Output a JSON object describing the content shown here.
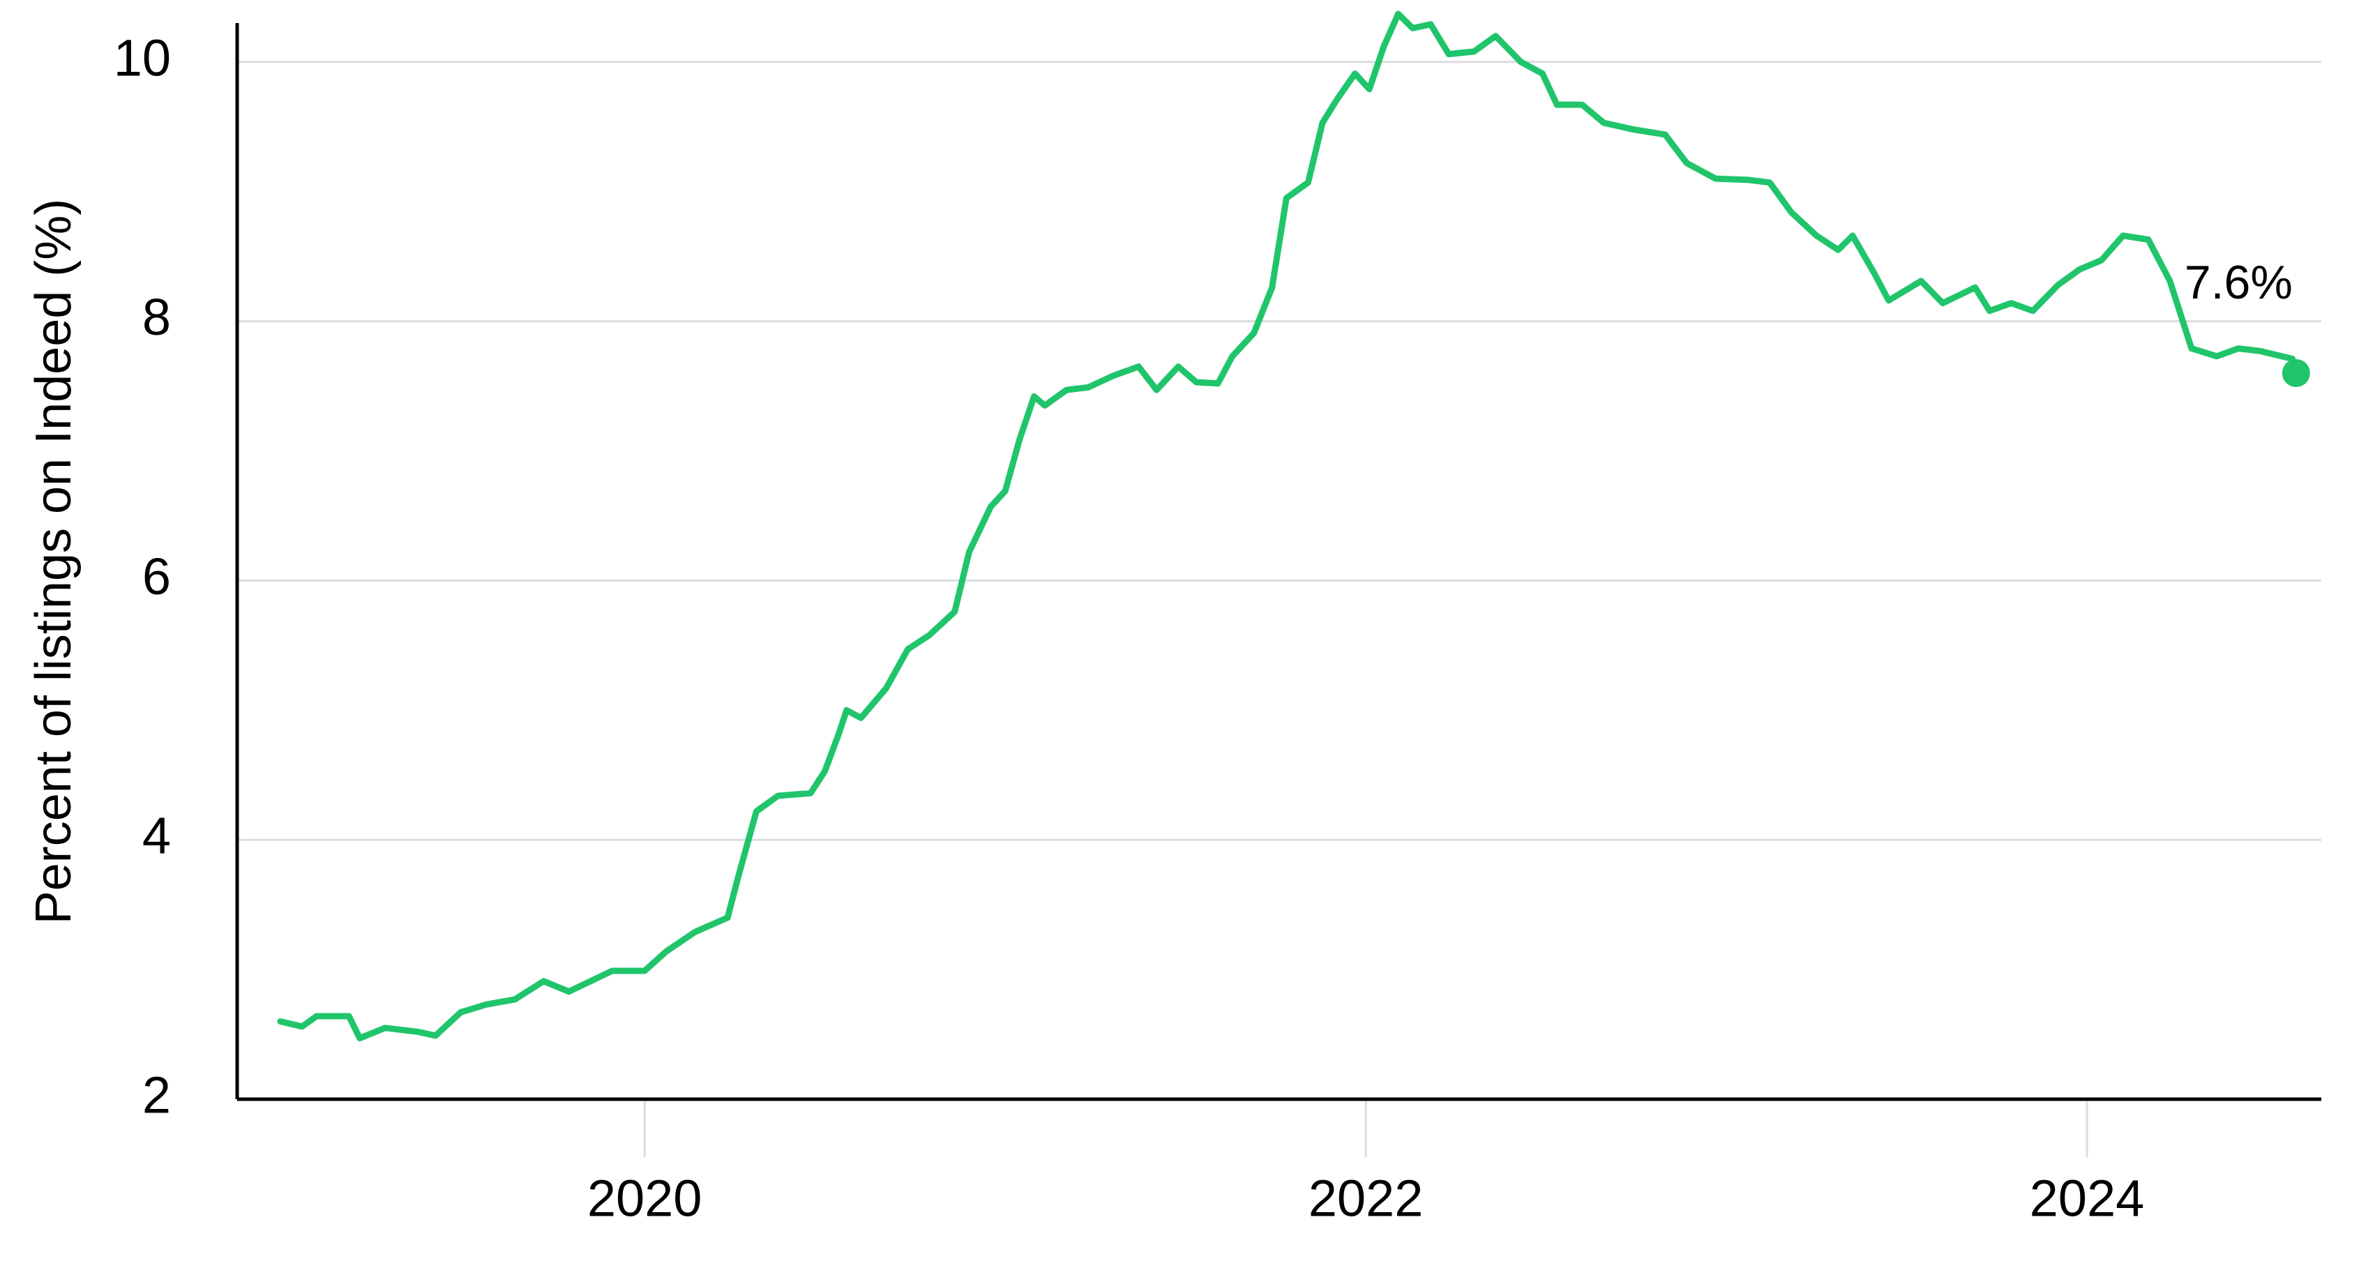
{
  "chart_data": {
    "type": "line",
    "y_label": "Percent of listings on Indeed (%)",
    "x": [
      2018.99,
      2019.05,
      2019.09,
      2019.18,
      2019.21,
      2019.28,
      2019.37,
      2019.42,
      2019.49,
      2019.56,
      2019.64,
      2019.72,
      2019.79,
      2019.85,
      2019.91,
      2020.0,
      2020.06,
      2020.14,
      2020.23,
      2020.26,
      2020.31,
      2020.37,
      2020.46,
      2020.5,
      2020.54,
      2020.56,
      2020.6,
      2020.67,
      2020.73,
      2020.79,
      2020.86,
      2020.9,
      2020.96,
      2021.0,
      2021.04,
      2021.08,
      2021.11,
      2021.17,
      2021.23,
      2021.3,
      2021.37,
      2021.42,
      2021.48,
      2021.53,
      2021.59,
      2021.63,
      2021.69,
      2021.74,
      2021.78,
      2021.84,
      2021.88,
      2021.92,
      2021.97,
      2022.01,
      2022.05,
      2022.09,
      2022.13,
      2022.18,
      2022.23,
      2022.3,
      2022.36,
      2022.43,
      2022.49,
      2022.53,
      2022.6,
      2022.66,
      2022.74,
      2022.83,
      2022.89,
      2022.97,
      2023.06,
      2023.12,
      2023.18,
      2023.25,
      2023.31,
      2023.35,
      2023.41,
      2023.45,
      2023.54,
      2023.6,
      2023.69,
      2023.73,
      2023.79,
      2023.85,
      2023.92,
      2023.98,
      2024.04,
      2024.1,
      2024.17,
      2024.23,
      2024.29,
      2024.36,
      2024.42,
      2024.48,
      2024.57
    ],
    "values": [
      2.6,
      2.56,
      2.64,
      2.64,
      2.47,
      2.55,
      2.52,
      2.49,
      2.67,
      2.73,
      2.77,
      2.91,
      2.83,
      2.91,
      2.99,
      2.99,
      3.14,
      3.29,
      3.4,
      3.72,
      4.22,
      4.34,
      4.36,
      4.53,
      4.83,
      5.0,
      4.94,
      5.17,
      5.47,
      5.58,
      5.76,
      6.22,
      6.57,
      6.69,
      7.09,
      7.42,
      7.35,
      7.47,
      7.49,
      7.58,
      7.65,
      7.47,
      7.65,
      7.53,
      7.52,
      7.73,
      7.91,
      8.26,
      8.95,
      9.07,
      9.53,
      9.71,
      9.91,
      9.79,
      10.12,
      10.37,
      10.26,
      10.29,
      10.06,
      10.08,
      10.2,
      10.0,
      9.91,
      9.67,
      9.67,
      9.53,
      9.48,
      9.44,
      9.22,
      9.1,
      9.09,
      9.07,
      8.84,
      8.66,
      8.55,
      8.66,
      8.37,
      8.16,
      8.31,
      8.14,
      8.26,
      8.08,
      8.14,
      8.08,
      8.28,
      8.4,
      8.47,
      8.66,
      8.63,
      8.31,
      7.79,
      7.73,
      7.79,
      7.77,
      7.71
    ],
    "color": "#20c56b",
    "annotation": {
      "x": 2024.58,
      "value": 7.6,
      "label": "7.6%"
    },
    "xlim": [
      2018.87,
      2024.65
    ],
    "xticks": [
      2020,
      2022,
      2024
    ],
    "ylim": [
      2,
      10.3
    ],
    "yticks": [
      2,
      4,
      6,
      8,
      10
    ],
    "grid": true
  }
}
